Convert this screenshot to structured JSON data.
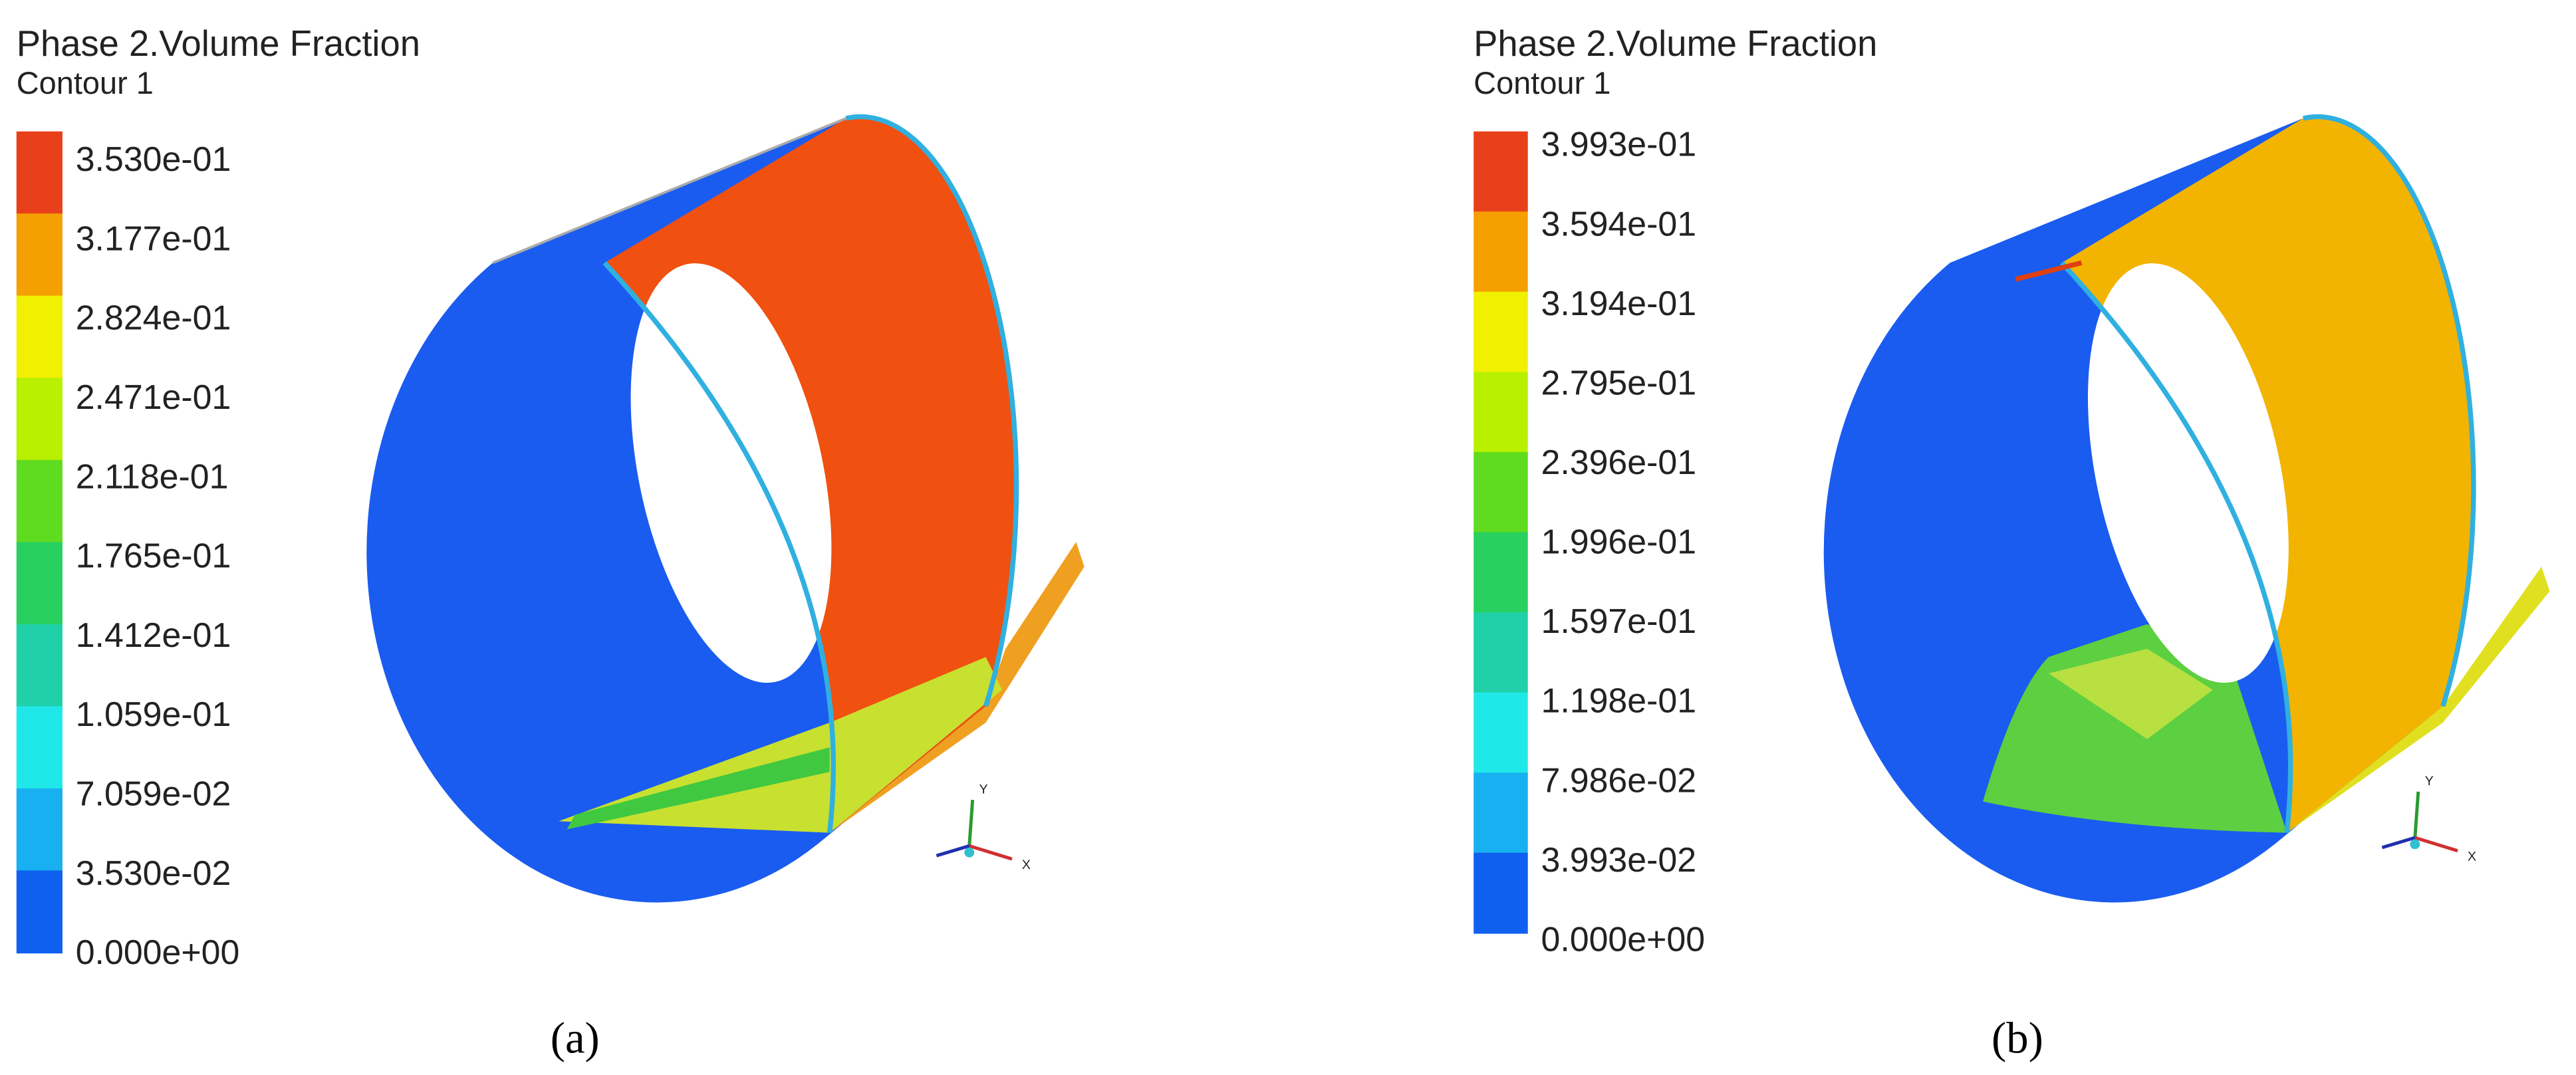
{
  "panels": [
    {
      "title": "Phase 2.Volume Fraction",
      "subtitle": "Contour 1",
      "legend_labels": [
        "3.530e-01",
        "3.177e-01",
        "2.824e-01",
        "2.471e-01",
        "2.118e-01",
        "1.765e-01",
        "1.412e-01",
        "1.059e-01",
        "7.059e-02",
        "3.530e-02",
        "0.000e+00"
      ],
      "axes": {
        "y": "Y",
        "x": "X"
      },
      "caption": "(a)"
    },
    {
      "title": "Phase 2.Volume Fraction",
      "subtitle": "Contour 1",
      "legend_labels": [
        "3.993e-01",
        "3.594e-01",
        "3.194e-01",
        "2.795e-01",
        "2.396e-01",
        "1.996e-01",
        "1.597e-01",
        "1.198e-01",
        "7.986e-02",
        "3.993e-02",
        "0.000e+00"
      ],
      "axes": {
        "y": "Y",
        "x": "X"
      },
      "caption": "(b)"
    }
  ]
}
